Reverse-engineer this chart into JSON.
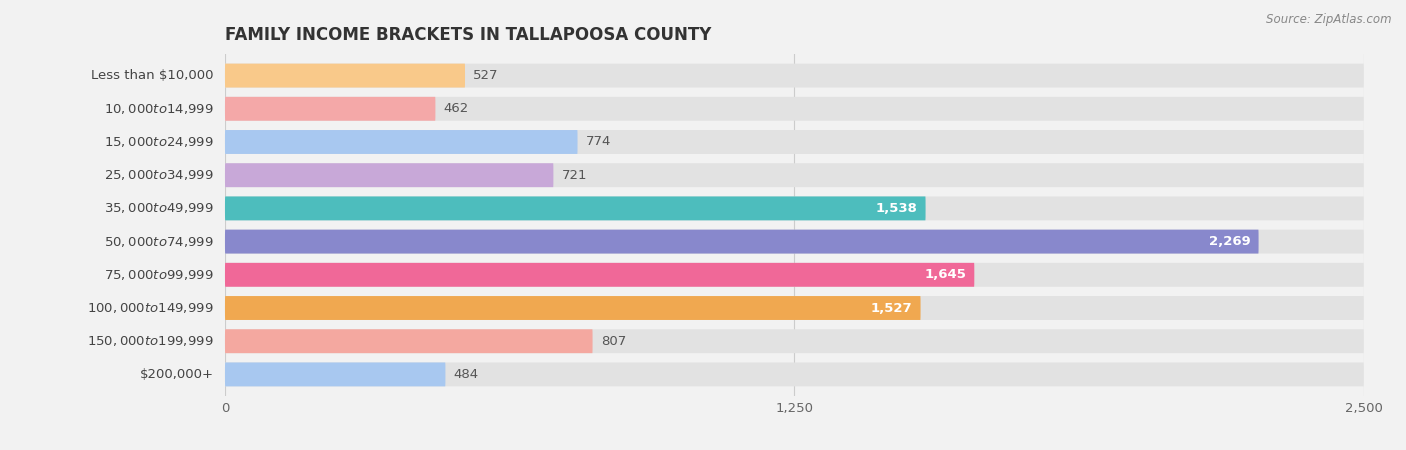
{
  "title": "FAMILY INCOME BRACKETS IN TALLAPOOSA COUNTY",
  "source": "Source: ZipAtlas.com",
  "categories": [
    "Less than $10,000",
    "$10,000 to $14,999",
    "$15,000 to $24,999",
    "$25,000 to $34,999",
    "$35,000 to $49,999",
    "$50,000 to $74,999",
    "$75,000 to $99,999",
    "$100,000 to $149,999",
    "$150,000 to $199,999",
    "$200,000+"
  ],
  "values": [
    527,
    462,
    774,
    721,
    1538,
    2269,
    1645,
    1527,
    807,
    484
  ],
  "bar_colors": [
    "#F9C98A",
    "#F4A8A8",
    "#A8C8F0",
    "#C8A8D8",
    "#4DBDBD",
    "#8888CC",
    "#F06898",
    "#F0A850",
    "#F4A8A0",
    "#A8C8F0"
  ],
  "background_color": "#f2f2f2",
  "bar_background_color": "#e2e2e2",
  "xlim": [
    0,
    2500
  ],
  "xticks": [
    0,
    1250,
    2500
  ],
  "xtick_labels": [
    "0",
    "1,250",
    "2,500"
  ],
  "title_fontsize": 12,
  "label_fontsize": 9.5,
  "value_fontsize": 9.5,
  "value_white_threshold": 900
}
